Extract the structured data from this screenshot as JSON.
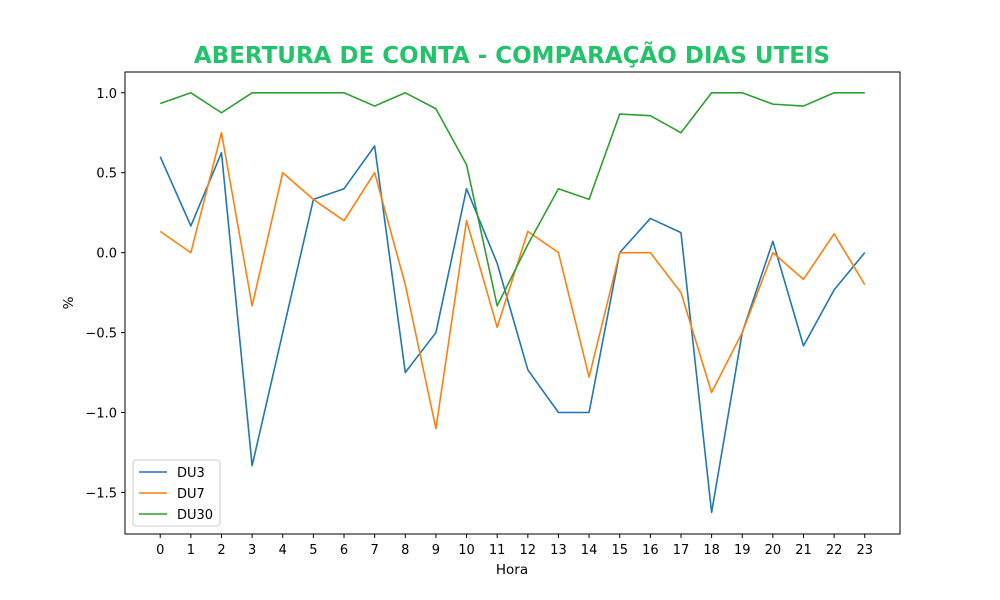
{
  "chart_data": {
    "type": "line",
    "title": "ABERTURA DE CONTA - COMPARAÇÃO DIAS UTEIS",
    "title_color": "#22c36b",
    "xlabel": "Hora",
    "ylabel": "%",
    "x": [
      0,
      1,
      2,
      3,
      4,
      5,
      6,
      7,
      8,
      9,
      10,
      11,
      12,
      13,
      14,
      15,
      16,
      17,
      18,
      19,
      20,
      21,
      22,
      23
    ],
    "xlim": [
      -1.15,
      24.15
    ],
    "ylim": [
      -1.76,
      1.13
    ],
    "yticks": [
      1.0,
      0.5,
      0.0,
      -0.5,
      -1.0,
      -1.5
    ],
    "ytick_labels": [
      "1.0",
      "0.5",
      "0.0",
      "−0.5",
      "−1.0",
      "−1.5"
    ],
    "grid": false,
    "legend_position": "lower-left",
    "series": [
      {
        "name": "DU3",
        "color": "#1f77b4",
        "values": [
          0.6,
          0.167,
          0.625,
          -1.333,
          -0.5,
          0.333,
          0.4,
          0.667,
          -0.75,
          -0.5,
          0.4,
          -0.067,
          -0.733,
          -1.0,
          -1.0,
          0.0,
          0.214,
          0.125,
          -1.625,
          -0.5,
          0.071,
          -0.583,
          -0.233,
          0.0
        ]
      },
      {
        "name": "DU7",
        "color": "#ff7f0e",
        "values": [
          0.133,
          0.0,
          0.75,
          -0.333,
          0.5,
          0.333,
          0.2,
          0.5,
          -0.2,
          -1.1,
          0.2,
          -0.467,
          0.133,
          0.0,
          -0.778,
          0.0,
          0.0,
          -0.25,
          -0.875,
          -0.5,
          0.0,
          -0.167,
          0.118,
          -0.2
        ]
      },
      {
        "name": "DU30",
        "color": "#2ca02c",
        "values": [
          0.933,
          1.0,
          0.875,
          1.0,
          1.0,
          1.0,
          1.0,
          0.917,
          1.0,
          0.9,
          0.55,
          -0.333,
          0.05,
          0.4,
          0.333,
          0.867,
          0.857,
          0.75,
          1.0,
          1.0,
          0.929,
          0.917,
          1.0,
          1.0
        ]
      }
    ]
  }
}
